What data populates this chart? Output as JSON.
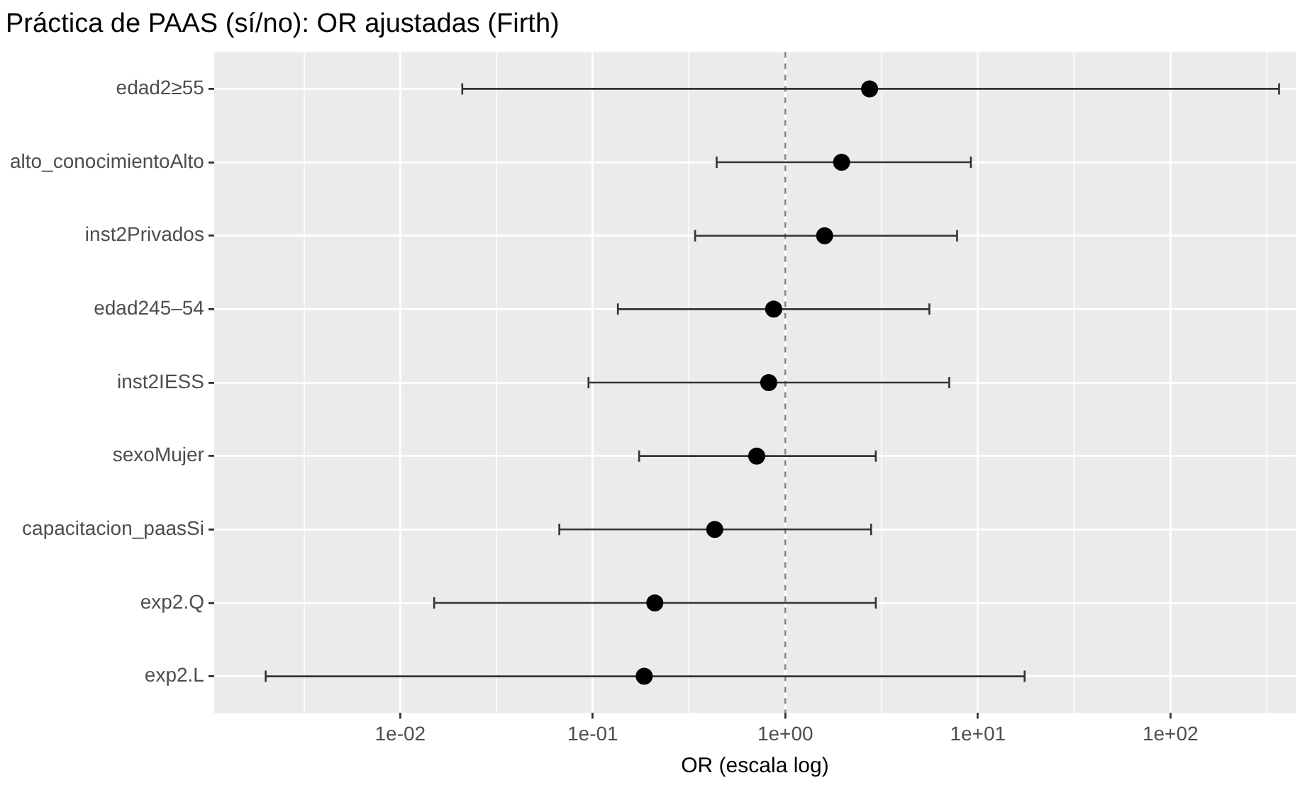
{
  "chart_data": {
    "type": "scatter",
    "orientation": "horizontal",
    "title": "Práctica de PAAS (sí/no): OR ajustadas (Firth)",
    "xlabel": "OR (escala log)",
    "categories": [
      "edad2≥55",
      "alto_conocimientoAlto",
      "inst2Privados",
      "edad245–54",
      "inst2IESS",
      "sexoMujer",
      "capacitacion_paasSi",
      "exp2.Q",
      "exp2.L"
    ],
    "values": [
      2.74,
      1.96,
      1.6,
      0.87,
      0.82,
      0.71,
      0.43,
      0.21,
      0.185
    ],
    "errors": [
      [
        0.021,
        367
      ],
      [
        0.44,
        9.2
      ],
      [
        0.34,
        7.8
      ],
      [
        0.135,
        5.6
      ],
      [
        0.095,
        7.1
      ],
      [
        0.174,
        2.95
      ],
      [
        0.067,
        2.79
      ],
      [
        0.015,
        2.95
      ],
      [
        0.002,
        17.5
      ]
    ],
    "color": "#000000",
    "marker": "circle",
    "log": "x",
    "xlim": [
      0.00108,
      448
    ],
    "xticks": [
      {
        "value": 0.00316,
        "label": null
      },
      {
        "value": 0.01,
        "label": "1e-02"
      },
      {
        "value": 0.0316,
        "label": null
      },
      {
        "value": 0.1,
        "label": "1e-01"
      },
      {
        "value": 0.316,
        "label": null
      },
      {
        "value": 1,
        "label": "1e+00"
      },
      {
        "value": 3.16,
        "label": null
      },
      {
        "value": 10,
        "label": "1e+01"
      },
      {
        "value": 31.6,
        "label": null
      },
      {
        "value": 100,
        "label": "1e+02"
      },
      {
        "value": 316,
        "label": null
      }
    ],
    "ref_lines": [
      {
        "axis": "x",
        "value": 1,
        "color": "#808080",
        "line_style": "dashed"
      }
    ],
    "grid": true,
    "legend": false
  }
}
